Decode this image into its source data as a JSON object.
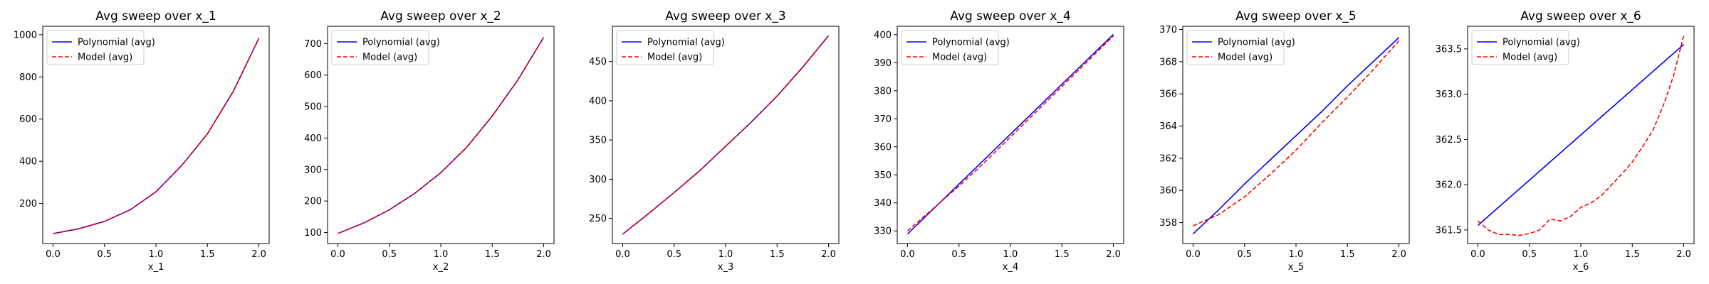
{
  "colors": {
    "polynomial": "#0000ff",
    "model": "#ff0000",
    "axes": "#000000",
    "legend_border": "#cccccc"
  },
  "chart_data": [
    {
      "type": "line",
      "title": "Avg sweep over x_1",
      "xlabel": "x_1",
      "xlim": [
        -0.1,
        2.1
      ],
      "ylim": [
        10,
        1040
      ],
      "xticks": [
        "0.0",
        "0.5",
        "1.0",
        "1.5",
        "2.0"
      ],
      "yticks": [
        "200",
        "400",
        "600",
        "800",
        "1000"
      ],
      "legend": "top-left",
      "x": [
        0.0,
        0.25,
        0.5,
        0.75,
        1.0,
        1.25,
        1.5,
        1.75,
        2.0
      ],
      "series": [
        {
          "name": "Polynomial (avg)",
          "style": "solid",
          "values": [
            57,
            80,
            115,
            170,
            255,
            380,
            530,
            730,
            983
          ]
        },
        {
          "name": "Model (avg)",
          "style": "dashed",
          "values": [
            57,
            80,
            115,
            170,
            255,
            380,
            530,
            730,
            983
          ]
        }
      ]
    },
    {
      "type": "line",
      "title": "Avg sweep over x_2",
      "xlabel": "x_2",
      "xlim": [
        -0.1,
        2.1
      ],
      "ylim": [
        65,
        755
      ],
      "xticks": [
        "0.0",
        "0.5",
        "1.0",
        "1.5",
        "2.0"
      ],
      "yticks": [
        "100",
        "200",
        "300",
        "400",
        "500",
        "600",
        "700"
      ],
      "legend": "top-left",
      "x": [
        0.0,
        0.25,
        0.5,
        0.75,
        1.0,
        1.25,
        1.5,
        1.75,
        2.0
      ],
      "series": [
        {
          "name": "Polynomial (avg)",
          "style": "solid",
          "values": [
            97,
            130,
            172,
            225,
            290,
            370,
            470,
            585,
            720
          ]
        },
        {
          "name": "Model (avg)",
          "style": "dashed",
          "values": [
            97,
            130,
            172,
            225,
            290,
            370,
            470,
            585,
            720
          ]
        }
      ]
    },
    {
      "type": "line",
      "title": "Avg sweep over x_3",
      "xlabel": "x_3",
      "xlim": [
        -0.1,
        2.1
      ],
      "ylim": [
        218,
        495
      ],
      "xticks": [
        "0.0",
        "0.5",
        "1.0",
        "1.5",
        "2.0"
      ],
      "yticks": [
        "250",
        "300",
        "350",
        "400",
        "450"
      ],
      "legend": "top-left",
      "x": [
        0.0,
        0.25,
        0.5,
        0.75,
        1.0,
        1.25,
        1.5,
        1.75,
        2.0
      ],
      "series": [
        {
          "name": "Polynomial (avg)",
          "style": "solid",
          "values": [
            230,
            256,
            283,
            311,
            342,
            373,
            406,
            443,
            483
          ]
        },
        {
          "name": "Model (avg)",
          "style": "dashed",
          "values": [
            230,
            256,
            283,
            311,
            342,
            373,
            406,
            443,
            483
          ]
        }
      ]
    },
    {
      "type": "line",
      "title": "Avg sweep over x_4",
      "xlabel": "x_4",
      "xlim": [
        -0.1,
        2.1
      ],
      "ylim": [
        325.5,
        403
      ],
      "xticks": [
        "0.0",
        "0.5",
        "1.0",
        "1.5",
        "2.0"
      ],
      "yticks": [
        "330",
        "340",
        "350",
        "360",
        "370",
        "380",
        "390",
        "400"
      ],
      "legend": "top-left",
      "x": [
        0.0,
        0.25,
        0.5,
        0.75,
        1.0,
        1.25,
        1.5,
        1.75,
        2.0
      ],
      "series": [
        {
          "name": "Polynomial (avg)",
          "style": "solid",
          "values": [
            328.9,
            337.8,
            346.7,
            355.6,
            364.5,
            373.4,
            382.3,
            391.2,
            400.1
          ]
        },
        {
          "name": "Model (avg)",
          "style": "dashed",
          "values": [
            330.0,
            338.0,
            346.0,
            354.5,
            363.5,
            372.5,
            381.5,
            390.5,
            399.6
          ]
        }
      ]
    },
    {
      "type": "line",
      "title": "Avg sweep over x_5",
      "xlabel": "x_5",
      "xlim": [
        -0.1,
        2.1
      ],
      "ylim": [
        356.7,
        370.2
      ],
      "xticks": [
        "0.0",
        "0.5",
        "1.0",
        "1.5",
        "2.0"
      ],
      "yticks": [
        "358",
        "360",
        "362",
        "364",
        "366",
        "368",
        "370"
      ],
      "legend": "top-left",
      "x": [
        0.0,
        0.25,
        0.5,
        0.75,
        1.0,
        1.25,
        1.5,
        1.75,
        2.0
      ],
      "series": [
        {
          "name": "Polynomial (avg)",
          "style": "solid",
          "values": [
            357.3,
            358.8,
            360.4,
            361.9,
            363.4,
            364.9,
            366.5,
            368.0,
            369.5
          ]
        },
        {
          "name": "Model (avg)",
          "style": "dashed",
          "values": [
            357.8,
            358.5,
            359.6,
            361.0,
            362.5,
            364.2,
            365.8,
            367.5,
            369.3
          ]
        }
      ]
    },
    {
      "type": "line",
      "title": "Avg sweep over x_6",
      "xlabel": "x_6",
      "xlim": [
        -0.1,
        2.1
      ],
      "ylim": [
        361.35,
        363.75
      ],
      "xticks": [
        "0.0",
        "0.5",
        "1.0",
        "1.5",
        "2.0"
      ],
      "yticks": [
        "361.5",
        "362.0",
        "362.5",
        "363.0",
        "363.5"
      ],
      "legend": "top-left",
      "x": [
        0.0,
        0.1,
        0.2,
        0.3,
        0.4,
        0.5,
        0.6,
        0.7,
        0.8,
        0.9,
        1.0,
        1.1,
        1.2,
        1.3,
        1.4,
        1.5,
        1.6,
        1.7,
        1.8,
        1.9,
        2.0
      ],
      "series": [
        {
          "name": "Polynomial (avg)",
          "style": "solid",
          "values": [
            361.55,
            361.65,
            361.75,
            361.85,
            361.95,
            362.05,
            362.15,
            362.25,
            362.35,
            362.45,
            362.55,
            362.65,
            362.75,
            362.85,
            362.95,
            363.05,
            363.15,
            363.25,
            363.35,
            363.45,
            363.55
          ]
        },
        {
          "name": "Model (avg)",
          "style": "dashed",
          "values": [
            361.6,
            361.5,
            361.45,
            361.45,
            361.44,
            361.46,
            361.5,
            361.62,
            361.6,
            361.65,
            361.75,
            361.8,
            361.88,
            362.0,
            362.12,
            362.25,
            362.42,
            362.6,
            362.87,
            363.2,
            363.65
          ]
        }
      ]
    }
  ]
}
